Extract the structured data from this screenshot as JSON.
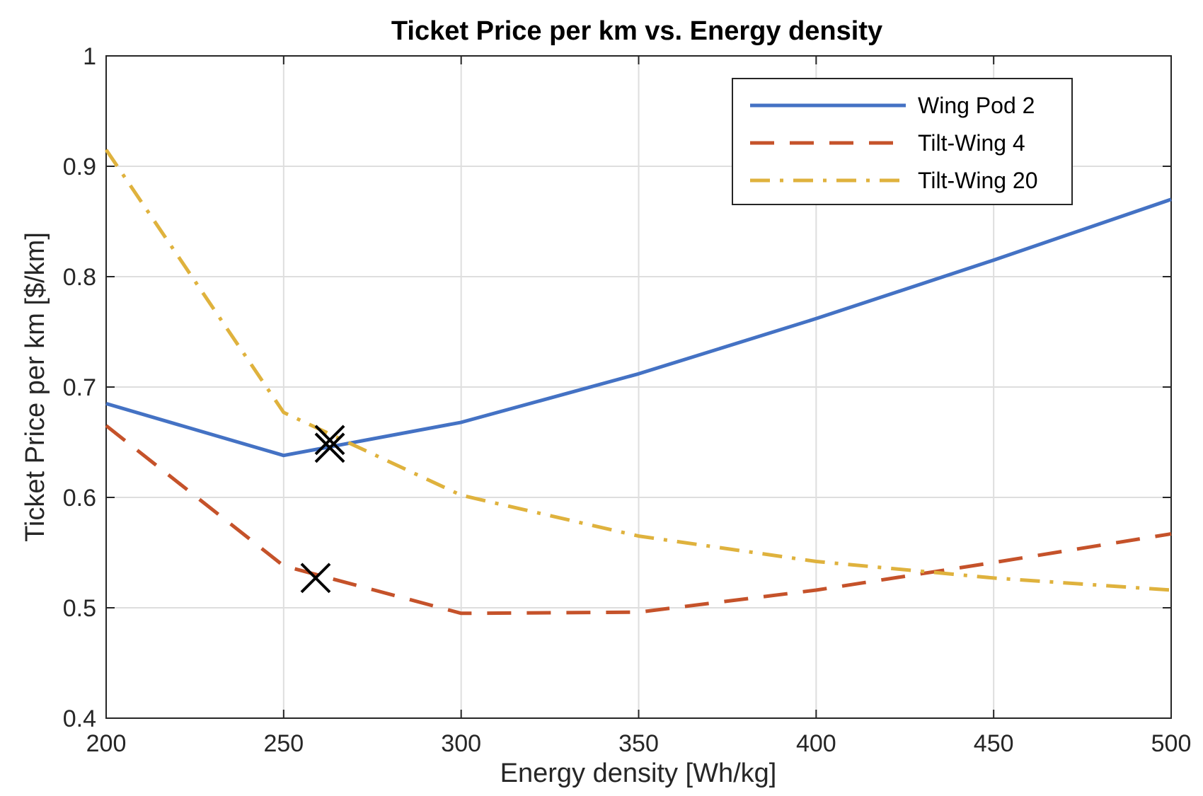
{
  "chart_data": {
    "type": "line",
    "title": "Ticket Price per km vs. Energy density",
    "xlabel": "Energy density [Wh/kg]",
    "ylabel": "Ticket Price per km [$/km]",
    "xlim": [
      200,
      500
    ],
    "ylim": [
      0.4,
      1.0
    ],
    "xticks": [
      200,
      250,
      300,
      350,
      400,
      450,
      500
    ],
    "yticks": [
      0.4,
      0.5,
      0.6,
      0.7,
      0.8,
      0.9,
      1.0
    ],
    "xtick_labels": [
      "200",
      "250",
      "300",
      "350",
      "400",
      "450",
      "500"
    ],
    "ytick_labels": [
      "0.4",
      "0.5",
      "0.6",
      "0.7",
      "0.8",
      "0.9",
      "1"
    ],
    "grid": true,
    "legend_position": "top-right",
    "series": [
      {
        "name": "Wing Pod 2",
        "style": "solid",
        "color": "#4472c4",
        "x": [
          200,
          250,
          300,
          350,
          400,
          450,
          500
        ],
        "y": [
          0.685,
          0.638,
          0.668,
          0.712,
          0.762,
          0.815,
          0.87
        ]
      },
      {
        "name": "Tilt-Wing 4",
        "style": "dashed",
        "color": "#c5522a",
        "x": [
          200,
          250,
          300,
          350,
          400,
          450,
          500
        ],
        "y": [
          0.665,
          0.538,
          0.495,
          0.496,
          0.516,
          0.541,
          0.567
        ]
      },
      {
        "name": "Tilt-Wing 20",
        "style": "dashdot",
        "color": "#dfb23d",
        "x": [
          200,
          250,
          300,
          350,
          400,
          450,
          500
        ],
        "y": [
          0.915,
          0.677,
          0.602,
          0.565,
          0.542,
          0.527,
          0.516
        ]
      }
    ],
    "markers": [
      {
        "symbol": "x",
        "x": 263,
        "y": 0.645
      },
      {
        "symbol": "x",
        "x": 263,
        "y": 0.652
      },
      {
        "symbol": "x",
        "x": 259,
        "y": 0.527
      }
    ]
  }
}
